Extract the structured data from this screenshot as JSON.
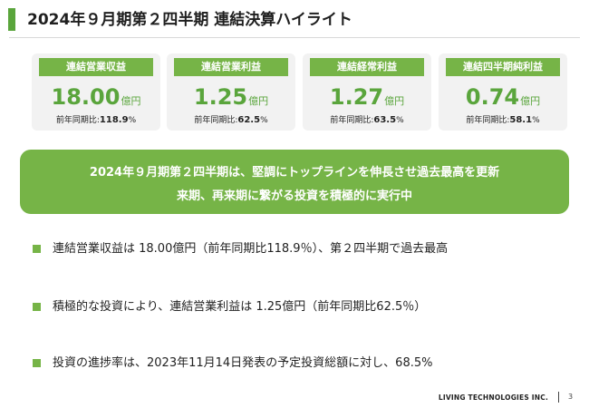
{
  "header": {
    "title": "2024年９月期第２四半期 連結決算ハイライト"
  },
  "cards": [
    {
      "label": "連結営業収益",
      "value": "18.00",
      "unit": "億円",
      "yoy_label": "前年同期比:",
      "yoy_value": "118.9",
      "yoy_unit": "%"
    },
    {
      "label": "連結営業利益",
      "value": "1.25",
      "unit": "億円",
      "yoy_label": "前年同期比:",
      "yoy_value": "62.5",
      "yoy_unit": "%"
    },
    {
      "label": "連結経常利益",
      "value": "1.27",
      "unit": "億円",
      "yoy_label": "前年同期比:",
      "yoy_value": "63.5",
      "yoy_unit": "%"
    },
    {
      "label": "連結四半期純利益",
      "value": "0.74",
      "unit": "億円",
      "yoy_label": "前年同期比:",
      "yoy_value": "58.1",
      "yoy_unit": "%"
    }
  ],
  "banner": {
    "line1": "2024年９月期第２四半期は、堅調にトップラインを伸長させ過去最高を更新",
    "line2": "来期、再来期に繋がる投資を積極的に実行中"
  },
  "bullets": [
    "連結営業収益は 18.00億円（前年同期比118.9％）、第２四半期で過去最高",
    "積極的な投資により、連結営業利益は 1.25億円（前年同期比62.5％）",
    "投資の進捗率は、2023年11月14日発表の予定投資総額に対し、68.5%"
  ],
  "footer": {
    "company": "LIVING TECHNOLOGIES INC.",
    "page": "3"
  },
  "colors": {
    "accent": "#76b447",
    "accent_dark": "#5aa53c",
    "card_bg": "#f2f2f2"
  }
}
